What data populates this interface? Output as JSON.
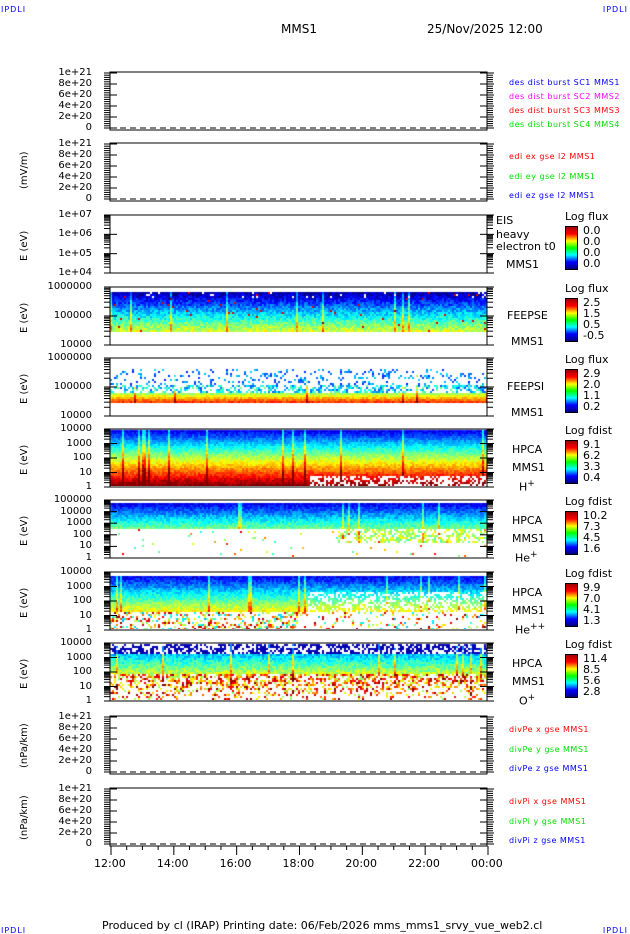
{
  "header": {
    "corner_left": "IPDLI",
    "corner_right": "IPDLI",
    "spacecraft": "MMS1",
    "datetime": "25/Nov/2025 12:00"
  },
  "footer": {
    "corner_left": "IPDLI",
    "corner_right": "IPDLI",
    "text": "Produced by cl (IRAP)   Printing date: 06/Feb/2026   mms_mms1_srvy_vue_web2.cl"
  },
  "colors": {
    "blue": "#0000ff",
    "magenta": "#ff00ff",
    "red": "#ff0000",
    "green": "#00e000"
  },
  "x_axis": {
    "ticks": [
      "12:00",
      "14:00",
      "16:00",
      "18:00",
      "20:00",
      "22:00",
      "00:00"
    ]
  },
  "chart_data": [
    {
      "type": "line",
      "id": "dist",
      "ylabel": "",
      "yticks": [
        "1e+21",
        "8e+20",
        "6e+20",
        "4e+20",
        "2e+20",
        "0"
      ],
      "ylim": [
        0,
        1e+21
      ],
      "legend": [
        {
          "label": "des dist burst SC1 MMS1",
          "color": "#0000ff"
        },
        {
          "label": "des dist burst SC2 MMS2",
          "color": "#ff00ff"
        },
        {
          "label": "des dist burst SC3 MMS3",
          "color": "#ff0000"
        },
        {
          "label": "des dist burst SC4 MMS4",
          "color": "#00e000"
        }
      ]
    },
    {
      "type": "line",
      "id": "edi",
      "ylabel": "(mV/m)",
      "yticks": [
        "1e+21",
        "8e+20",
        "6e+20",
        "4e+20",
        "2e+20",
        "0"
      ],
      "ylim": [
        0,
        1e+21
      ],
      "legend": [
        {
          "label": "edi ex gse l2 MMS1",
          "color": "#ff0000"
        },
        {
          "label": "edi ey gse l2 MMS1",
          "color": "#00e000"
        },
        {
          "label": "edi ez gse l2 MMS1",
          "color": "#0000ff"
        }
      ]
    },
    {
      "type": "heatmap",
      "id": "eis",
      "ylabel": "E (eV)",
      "yticks": [
        "1e+07",
        "1e+06",
        "1e+05",
        "1e+04"
      ],
      "scale": "log",
      "instrument": [
        "EIS",
        "heavy electron t0",
        "MMS1"
      ],
      "colorbar": {
        "title": "Log flux",
        "values": [
          "0.0",
          "0.0",
          "0.0",
          "0.0"
        ]
      }
    },
    {
      "type": "heatmap",
      "id": "feepse",
      "ylabel": "E (eV)",
      "yticks": [
        "1000000",
        "100000",
        "10000"
      ],
      "scale": "log",
      "instrument": [
        "FEEPSE",
        "MMS1"
      ],
      "colorbar": {
        "title": "Log flux",
        "values": [
          "2.5",
          "1.5",
          "0.5",
          "-0.5"
        ]
      }
    },
    {
      "type": "heatmap",
      "id": "feepsi",
      "ylabel": "E (eV)",
      "yticks": [
        "1000000",
        "100000",
        "10000"
      ],
      "scale": "log",
      "instrument": [
        "FEEPSI",
        "MMS1"
      ],
      "colorbar": {
        "title": "Log flux",
        "values": [
          "2.9",
          "2.0",
          "1.1",
          "0.2"
        ]
      }
    },
    {
      "type": "heatmap",
      "id": "hpca-h",
      "ylabel": "E (eV)",
      "yticks": [
        "10000",
        "1000",
        "100",
        "10",
        "1"
      ],
      "scale": "log",
      "instrument": [
        "HPCA",
        "MMS1"
      ],
      "species": {
        "base": "H",
        "sup": "+"
      },
      "colorbar": {
        "title": "Log fdist",
        "values": [
          "9.1",
          "6.2",
          "3.3",
          "0.4"
        ]
      }
    },
    {
      "type": "heatmap",
      "id": "hpca-he",
      "ylabel": "E (eV)",
      "yticks": [
        "100000",
        "10000",
        "1000",
        "100",
        "10",
        "1"
      ],
      "scale": "log",
      "instrument": [
        "HPCA",
        "MMS1"
      ],
      "species": {
        "base": "He",
        "sup": "+"
      },
      "colorbar": {
        "title": "Log fdist",
        "values": [
          "10.2",
          "7.3",
          "4.5",
          "1.6"
        ]
      }
    },
    {
      "type": "heatmap",
      "id": "hpca-hepp",
      "ylabel": "E (eV)",
      "yticks": [
        "10000",
        "1000",
        "100",
        "10",
        "1"
      ],
      "scale": "log",
      "instrument": [
        "HPCA",
        "MMS1"
      ],
      "species": {
        "base": "He",
        "sup": "++"
      },
      "colorbar": {
        "title": "Log fdist",
        "values": [
          "9.9",
          "7.0",
          "4.1",
          "1.3"
        ]
      }
    },
    {
      "type": "heatmap",
      "id": "hpca-o",
      "ylabel": "E (eV)",
      "yticks": [
        "10000",
        "1000",
        "100",
        "10",
        "1"
      ],
      "scale": "log",
      "instrument": [
        "HPCA",
        "MMS1"
      ],
      "species": {
        "base": "O",
        "sup": "+"
      },
      "colorbar": {
        "title": "Log fdist",
        "values": [
          "11.4",
          "8.5",
          "5.6",
          "2.8"
        ]
      }
    },
    {
      "type": "line",
      "id": "divpe",
      "ylabel": "(nPa/km)",
      "yticks": [
        "1e+21",
        "8e+20",
        "6e+20",
        "4e+20",
        "2e+20",
        "0"
      ],
      "ylim": [
        0,
        1e+21
      ],
      "legend": [
        {
          "label": "divPe x gse MMS1",
          "color": "#ff0000"
        },
        {
          "label": "divPe y gse MMS1",
          "color": "#00e000"
        },
        {
          "label": "divPe z gse MMS1",
          "color": "#0000ff"
        }
      ]
    },
    {
      "type": "line",
      "id": "divpi",
      "ylabel": "(nPa/km)",
      "yticks": [
        "1e+21",
        "8e+20",
        "6e+20",
        "4e+20",
        "2e+20",
        "0"
      ],
      "ylim": [
        0,
        1e+21
      ],
      "legend": [
        {
          "label": "divPi x gse MMS1",
          "color": "#ff0000"
        },
        {
          "label": "divPi y gse MMS1",
          "color": "#00e000"
        },
        {
          "label": "divPi z gse MMS1",
          "color": "#0000ff"
        }
      ]
    }
  ]
}
